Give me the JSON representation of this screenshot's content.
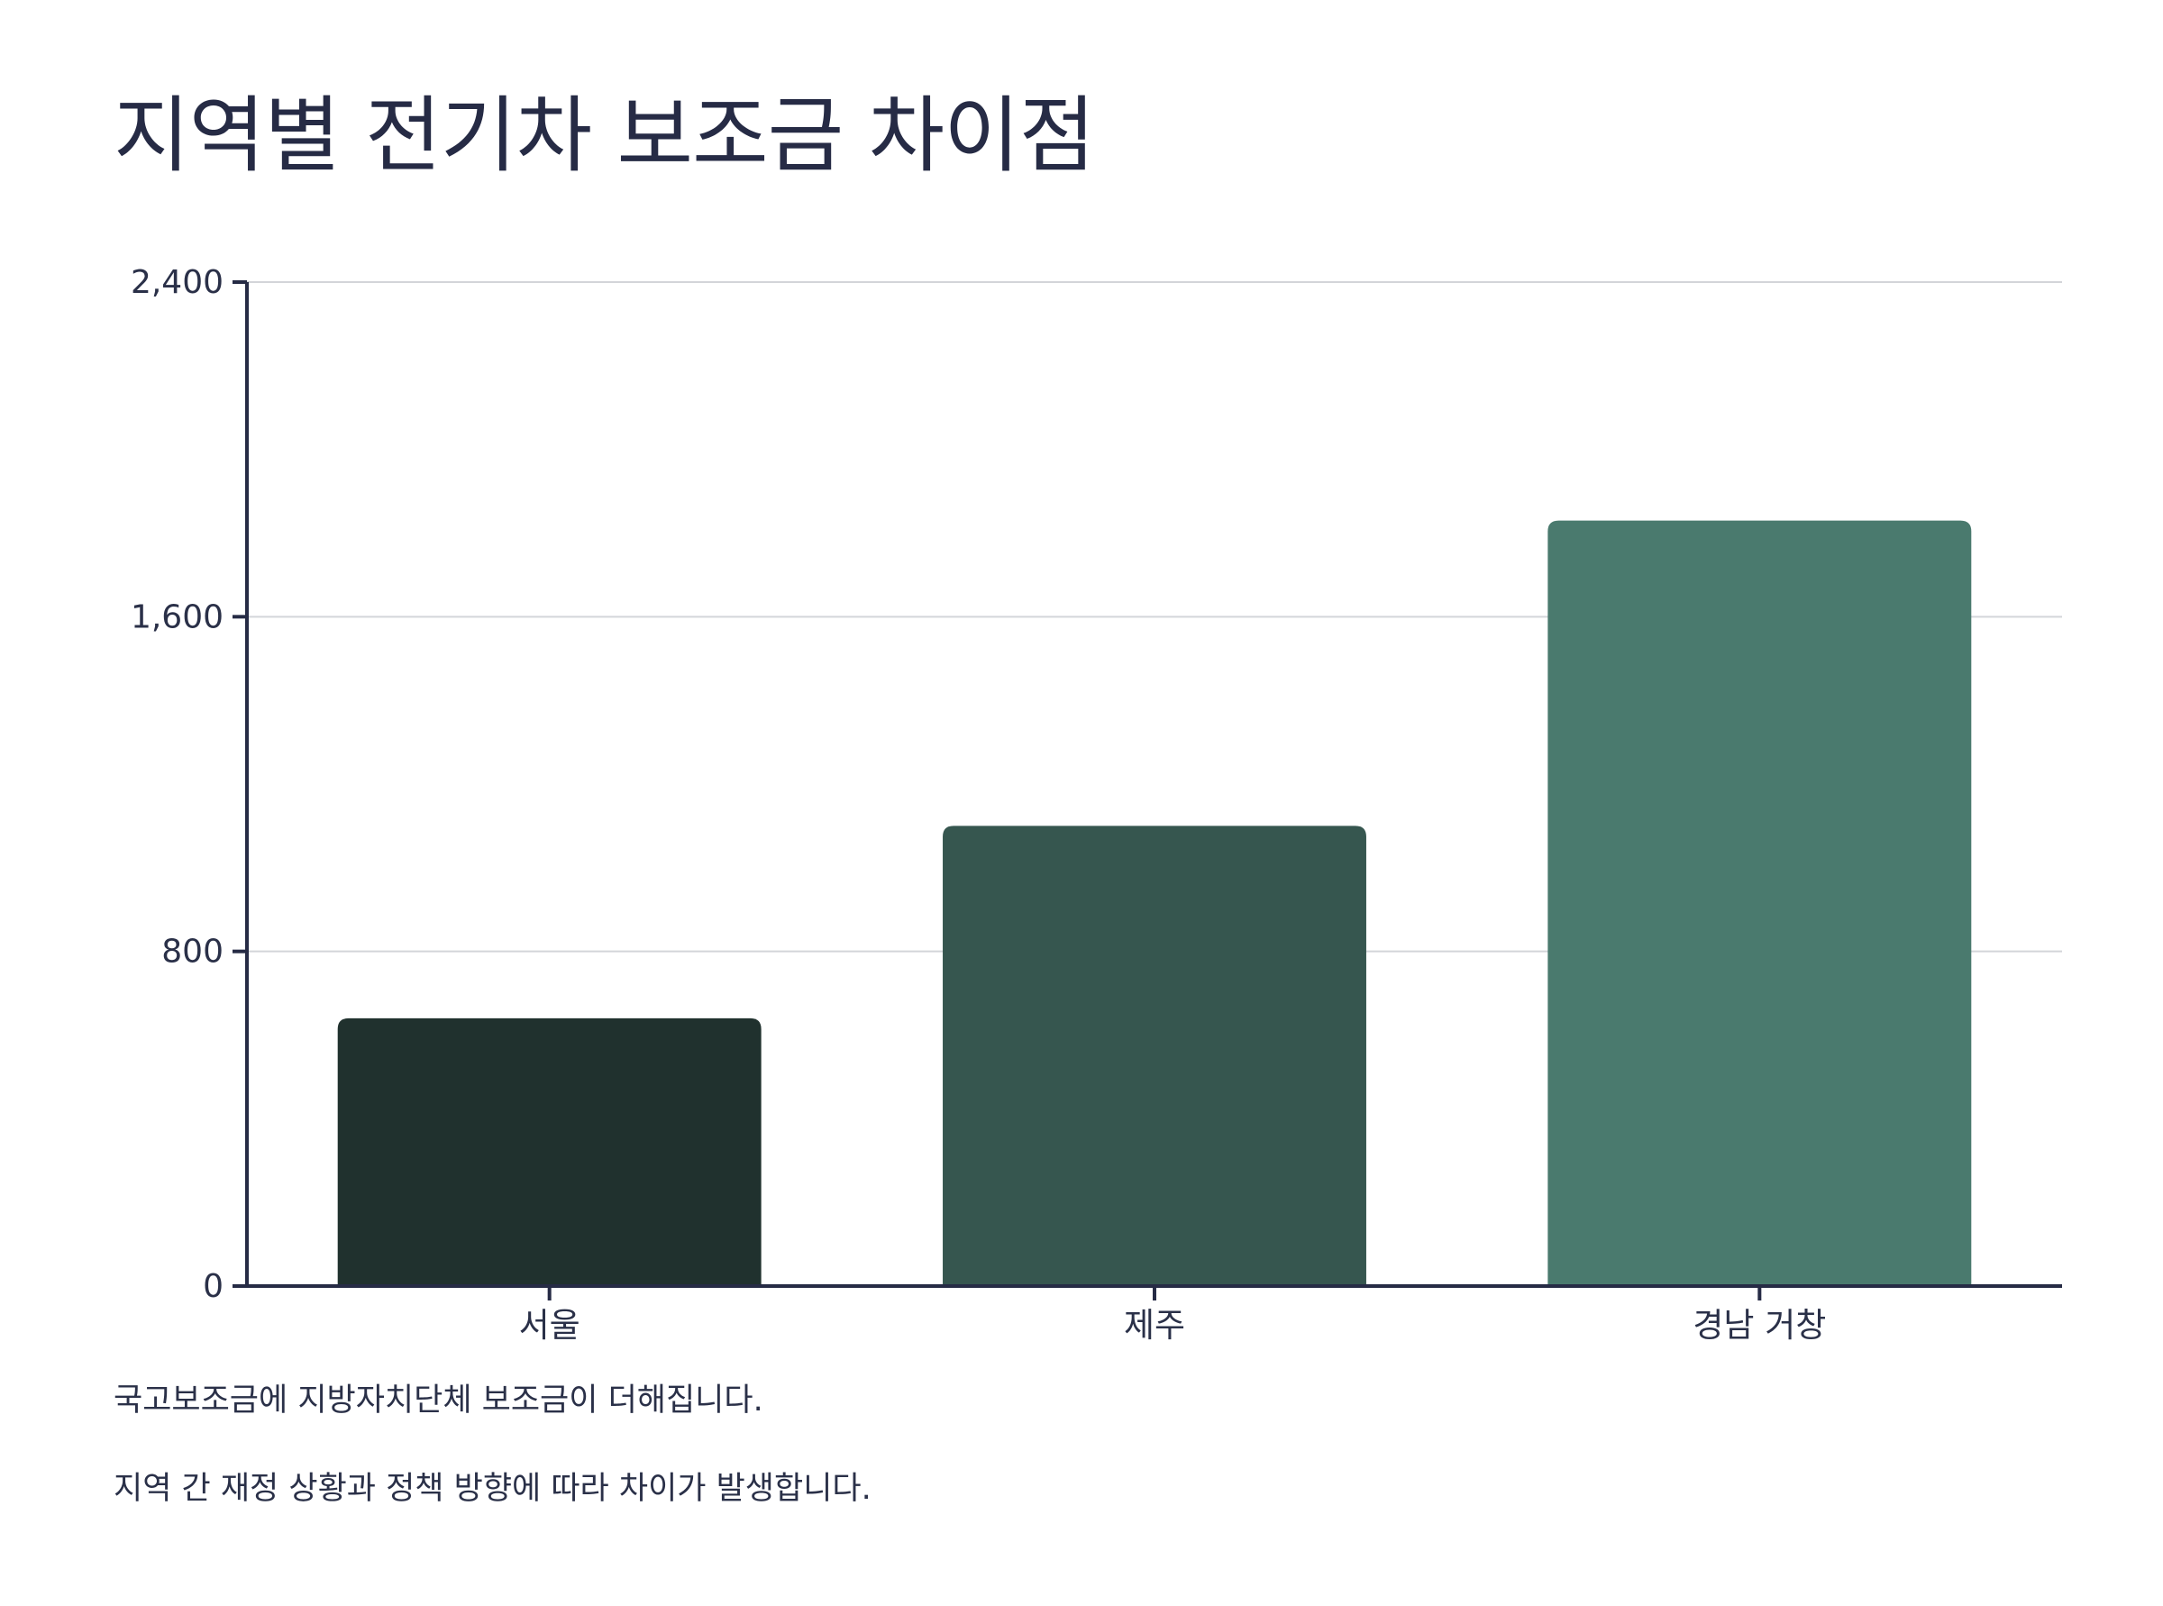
{
  "chart_data": {
    "type": "bar",
    "title": "지역별 전기차 보조금 차이점",
    "xlabel": "",
    "ylabel": "",
    "categories": [
      "서울",
      "제주",
      "경남 거창"
    ],
    "values": [
      640,
      1100,
      1830
    ],
    "ylim": [
      0,
      2400
    ],
    "yticks": [
      0,
      800,
      1600,
      2400
    ],
    "ytick_labels": [
      "0",
      "800",
      "1,600",
      "2,400"
    ],
    "grid": true,
    "legend": "none",
    "colors": [
      "#20312e",
      "#36564f",
      "#4a7a6e"
    ]
  },
  "notes": [
    "국고보조금에 지방자치단체 보조금이 더해집니다.",
    "지역 간 재정 상황과 정책 방향에 따라 차이가 발생합니다."
  ],
  "style": {
    "axis_color": "#262b45",
    "grid_color": "#d3d5d9",
    "text_color": "#2a3048"
  }
}
